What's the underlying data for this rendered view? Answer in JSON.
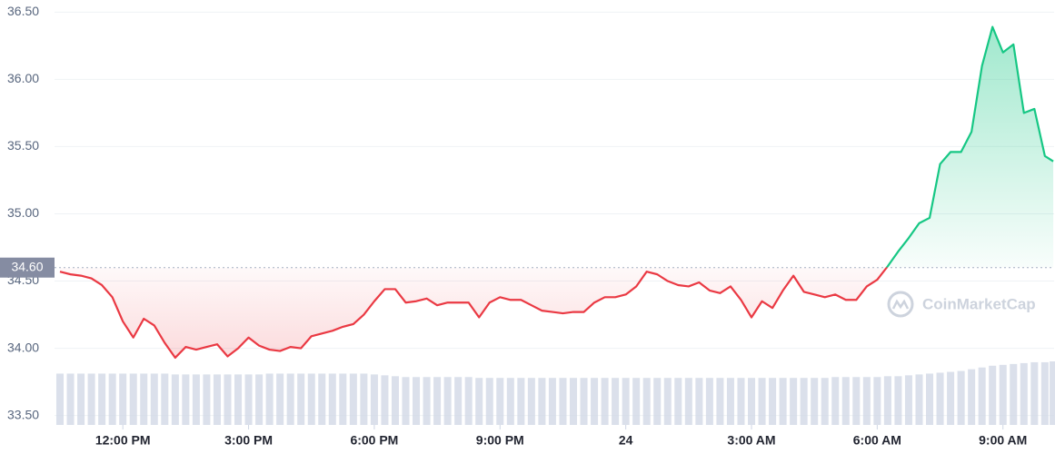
{
  "chart_data": {
    "type": "line",
    "watermark": "CoinMarketCap",
    "x": [
      10.5,
      10.75,
      11,
      11.25,
      11.5,
      11.75,
      12,
      12.25,
      12.5,
      12.75,
      13,
      13.25,
      13.5,
      13.75,
      14,
      14.25,
      14.5,
      14.75,
      15,
      15.25,
      15.5,
      15.75,
      16,
      16.25,
      16.5,
      16.75,
      17,
      17.25,
      17.5,
      17.75,
      18,
      18.25,
      18.5,
      18.75,
      19,
      19.25,
      19.5,
      19.75,
      20,
      20.25,
      20.5,
      20.75,
      21,
      21.25,
      21.5,
      21.75,
      22,
      22.25,
      22.5,
      22.75,
      23,
      23.25,
      23.5,
      23.75,
      24,
      24.25,
      24.5,
      24.75,
      25,
      25.25,
      25.5,
      25.75,
      26,
      26.25,
      26.5,
      26.75,
      27,
      27.25,
      27.5,
      27.75,
      28,
      28.25,
      28.5,
      28.75,
      29,
      29.25,
      29.5,
      29.75,
      30,
      30.25,
      30.5,
      30.75,
      31,
      31.25,
      31.5,
      31.75,
      32,
      32.25,
      32.5,
      32.75,
      33,
      33.25,
      33.5,
      33.75,
      34,
      34.2
    ],
    "values": [
      34.57,
      34.55,
      34.54,
      34.52,
      34.47,
      34.38,
      34.2,
      34.08,
      34.22,
      34.17,
      34.04,
      33.93,
      34.01,
      33.99,
      34.01,
      34.03,
      33.94,
      34.0,
      34.08,
      34.02,
      33.99,
      33.98,
      34.01,
      34.0,
      34.09,
      34.11,
      34.13,
      34.16,
      34.18,
      34.25,
      34.35,
      34.44,
      34.44,
      34.34,
      34.35,
      34.37,
      34.32,
      34.34,
      34.34,
      34.34,
      34.23,
      34.34,
      34.38,
      34.36,
      34.36,
      34.32,
      34.28,
      34.27,
      34.26,
      34.27,
      34.27,
      34.34,
      34.38,
      34.38,
      34.4,
      34.46,
      34.57,
      34.55,
      34.5,
      34.47,
      34.46,
      34.49,
      34.43,
      34.41,
      34.46,
      34.36,
      34.23,
      34.35,
      34.3,
      34.43,
      34.54,
      34.42,
      34.4,
      34.38,
      34.4,
      34.36,
      34.36,
      34.46,
      34.51,
      34.61,
      34.72,
      34.82,
      34.93,
      34.97,
      35.37,
      35.46,
      35.46,
      35.61,
      36.1,
      36.39,
      36.2,
      36.26,
      35.75,
      35.78,
      35.43,
      35.39
    ],
    "volume": [
      59,
      59,
      59,
      59,
      59,
      59,
      59,
      59,
      59,
      59,
      59,
      58,
      58,
      58,
      58,
      58,
      58,
      58,
      58,
      58,
      59,
      59,
      59,
      59,
      59,
      59,
      59,
      59,
      59,
      59,
      58,
      57,
      56,
      55,
      55,
      55,
      55,
      55,
      55,
      55,
      54,
      54,
      54,
      54,
      54,
      54,
      54,
      54,
      54,
      54,
      54,
      54,
      54,
      54,
      54,
      54,
      54,
      54,
      54,
      54,
      54,
      54,
      54,
      54,
      54,
      54,
      54,
      54,
      54,
      54,
      54,
      54,
      54,
      54,
      55,
      55,
      55,
      55,
      55,
      56,
      56,
      57,
      58,
      59,
      60,
      61,
      62,
      64,
      66,
      68,
      69,
      70,
      71,
      72,
      72,
      73
    ],
    "baseline": {
      "value": 34.6,
      "label": "34.60"
    },
    "up_color": "#16c784",
    "down_color": "#ea3943",
    "volume_color": "#cfd6e4",
    "xlim": [
      10.37,
      34.22
    ],
    "xticks": [
      {
        "value": 12,
        "label": "12:00 PM"
      },
      {
        "value": 15,
        "label": "3:00 PM"
      },
      {
        "value": 18,
        "label": "6:00 PM"
      },
      {
        "value": 21,
        "label": "9:00 PM"
      },
      24,
      {
        "value": 27,
        "label": "3:00 AM"
      },
      {
        "value": 30,
        "label": "6:00 AM"
      },
      {
        "value": 33,
        "label": "9:00 AM"
      }
    ],
    "ylim": [
      33.43,
      36.59
    ],
    "yticks": [
      {
        "value": 33.5,
        "label": "33.50"
      },
      {
        "value": 34,
        "label": "34.00"
      },
      {
        "value": 34.5,
        "label": "34.50"
      },
      {
        "value": 35,
        "label": "35.00"
      },
      {
        "value": 35.5,
        "label": "35.50"
      },
      {
        "value": 36,
        "label": "36.00"
      },
      {
        "value": 36.5,
        "label": "36.50"
      }
    ],
    "grid": true
  }
}
